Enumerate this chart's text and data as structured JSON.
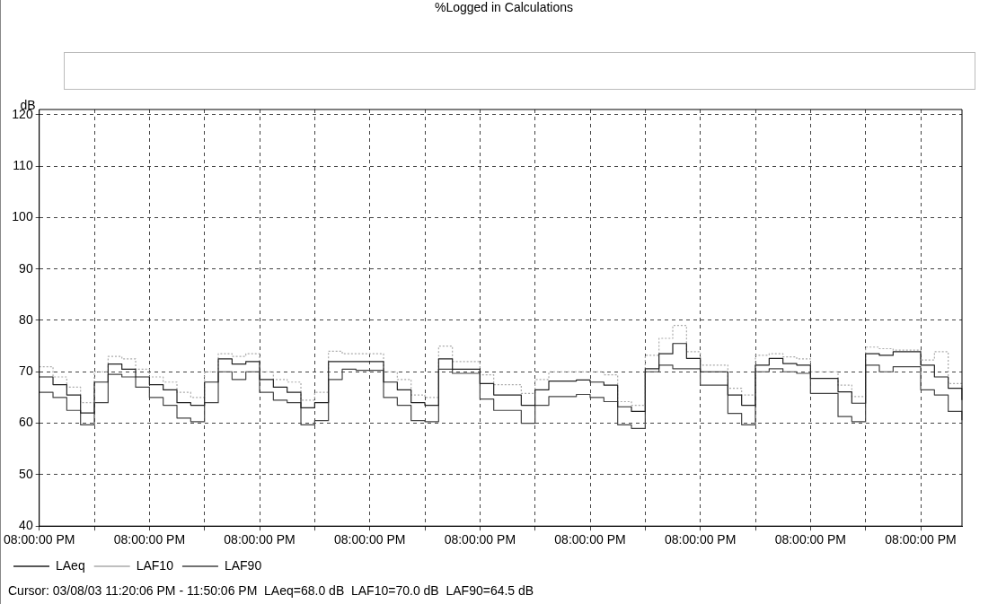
{
  "chart_data": {
    "type": "step",
    "title": "%Logged in Calculations",
    "ylabel": "dB",
    "categories": [
      "08:00:00 PM",
      null,
      null,
      null,
      null,
      null,
      null,
      null,
      "08:00:00 PM",
      null,
      null,
      null,
      null,
      null,
      null,
      null,
      "08:00:00 PM",
      null,
      null,
      null,
      null,
      null,
      null,
      null,
      "08:00:00 PM",
      null,
      null,
      null,
      null,
      null,
      null,
      null,
      "08:00:00 PM",
      null,
      null,
      null,
      null,
      null,
      null,
      null,
      "08:00:00 PM",
      null,
      null,
      null,
      null,
      null,
      null,
      null,
      "08:00:00 PM",
      null,
      null,
      null,
      null,
      null,
      null,
      null,
      "08:00:00 PM",
      null,
      null,
      null,
      null,
      null,
      null,
      null,
      "08:00:00 PM",
      null,
      null,
      null
    ],
    "series": [
      {
        "name": "LAeq",
        "color": "#222222",
        "line_style": "solid",
        "values": [
          69,
          67.5,
          65.5,
          62,
          68,
          71.5,
          70.5,
          69,
          67.5,
          66.5,
          64,
          63.5,
          68,
          72.5,
          71.5,
          72,
          68.5,
          67,
          66,
          63,
          64,
          72,
          72,
          72,
          72,
          68,
          66.5,
          64,
          63.5,
          72.5,
          70.5,
          70.5,
          67.7,
          65.5,
          65.5,
          63.5,
          66.5,
          68.2,
          68.2,
          68.4,
          68,
          67.4,
          63.2,
          62.3,
          70.6,
          73.5,
          75.5,
          72.6,
          70,
          70,
          65.5,
          63.5,
          71.3,
          72.6,
          71.6,
          71.3,
          68.7,
          68.7,
          66.1,
          63.9,
          73.5,
          73.2,
          73.9,
          73.9,
          71.3,
          69,
          66.8,
          64.5
        ]
      },
      {
        "name": "LAF10",
        "color": "#aaaaaa",
        "line_style": "dotted",
        "values": [
          71,
          69,
          67,
          64,
          70,
          73,
          72.5,
          70.5,
          69,
          68,
          66,
          65,
          70,
          73.5,
          73,
          73.5,
          70,
          68.5,
          68,
          64.5,
          66,
          74,
          73.5,
          73.5,
          73.5,
          70,
          68.5,
          65.5,
          65,
          75,
          72,
          72,
          69.4,
          67.5,
          67.5,
          65.8,
          68.5,
          70,
          70,
          70,
          70,
          69.4,
          64.2,
          63.5,
          73.2,
          76.5,
          79,
          73.9,
          71.3,
          71.3,
          66.8,
          65.5,
          73.2,
          73.5,
          72.9,
          72.5,
          70,
          70,
          67.4,
          65.2,
          74.8,
          74.5,
          74.2,
          74.2,
          72.3,
          73.9,
          67.7,
          66.5
        ]
      },
      {
        "name": "LAF90",
        "color": "#444444",
        "line_style": "solid",
        "values": [
          66,
          65,
          62.5,
          59.7,
          64,
          69.5,
          69,
          67,
          65,
          63.5,
          61,
          60.3,
          64,
          70,
          68.5,
          70,
          66,
          64.5,
          64,
          59.7,
          60.5,
          68.5,
          70.5,
          70.3,
          70.3,
          65,
          63.5,
          60.5,
          60.3,
          70.5,
          69.7,
          69.7,
          64.7,
          62.5,
          62.5,
          60,
          63.5,
          65.2,
          65.2,
          65.6,
          65,
          64.2,
          59.7,
          59,
          70,
          71.3,
          70.6,
          70.6,
          67.4,
          67.4,
          61.9,
          59.7,
          70,
          70.6,
          70,
          69.7,
          65.8,
          65.8,
          61.3,
          60.3,
          71.3,
          70,
          71,
          71,
          66.5,
          65.5,
          62.3,
          60.6
        ]
      }
    ],
    "ylim": [
      40,
      121
    ],
    "yticks": [
      40,
      50,
      60,
      70,
      80,
      90,
      100,
      110,
      120
    ],
    "grid": true,
    "legend": "bottom",
    "annotations": [
      "Cursor: 03/08/03 11:20:06 PM - 11:50:06 PM  LAeq=68.0 dB  LAF10=70.0 dB  LAF90=64.5 dB"
    ]
  }
}
